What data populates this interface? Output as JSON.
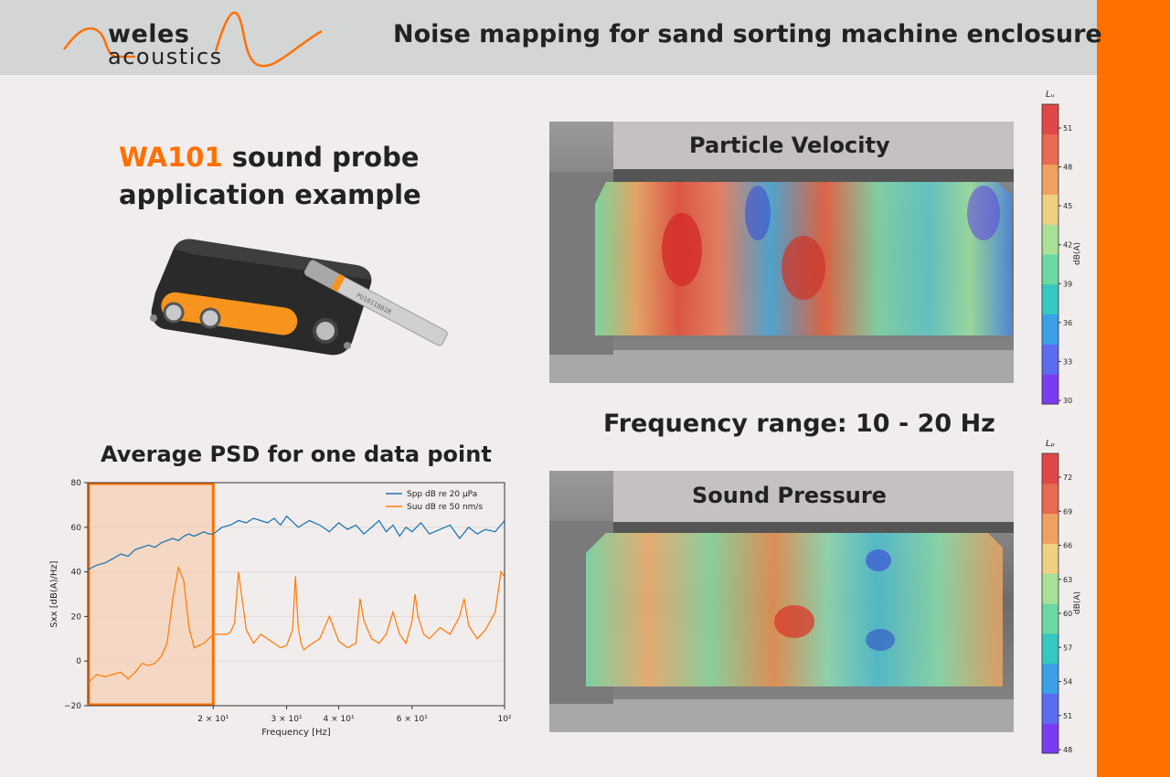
{
  "header": {
    "title": "Noise mapping for sand sorting machine enclosure",
    "logo_line1": "weles",
    "logo_line2": "acoustics"
  },
  "intro": {
    "product": "WA101",
    "line1_rest": " sound probe",
    "line2": "application example",
    "probe_serial": "PU1011801R"
  },
  "psd_title": "Average PSD for one data point",
  "frequency_range": "Frequency range: 10 - 20 Hz",
  "maps": [
    {
      "title": "Particle Velocity",
      "symbol": "Lᵤ",
      "unit": "dB(A)",
      "ticks": [
        "51",
        "48",
        "45",
        "42",
        "39",
        "36",
        "33",
        "30"
      ]
    },
    {
      "title": "Sound Pressure",
      "symbol": "Lₚ",
      "unit": "dB(A)",
      "ticks": [
        "72",
        "69",
        "66",
        "63",
        "60",
        "57",
        "54",
        "51",
        "48"
      ]
    }
  ],
  "colors": {
    "brand_orange": "#ff7000",
    "header_bg": "#d4d6d6",
    "spp": "#1f77b4",
    "suu": "#ff7f0e"
  },
  "chart_data": {
    "type": "line",
    "xscale": "log",
    "xlim": [
      10,
      100
    ],
    "ylim": [
      -20,
      80
    ],
    "xlabel": "Frequency [Hz]",
    "ylabel": "Sxx [dB(A)/Hz]",
    "xticks": [
      {
        "value": 20,
        "label": "2 × 10¹"
      },
      {
        "value": 30,
        "label": "3 × 10¹"
      },
      {
        "value": 40,
        "label": "4 × 10¹"
      },
      {
        "value": 60,
        "label": "6 × 10¹"
      },
      {
        "value": 100,
        "label": "10²"
      }
    ],
    "yticks": [
      "80",
      "60",
      "40",
      "20",
      "0",
      "−20"
    ],
    "highlight_range": [
      10,
      20
    ],
    "legend_position": "top-right",
    "series": [
      {
        "name": "Spp dB re 20 μPa",
        "color": "#1f77b4",
        "x": [
          10,
          10.5,
          11,
          11.5,
          12,
          12.5,
          13,
          13.5,
          14,
          14.5,
          15,
          15.5,
          16,
          16.5,
          17,
          17.5,
          18,
          18.5,
          19,
          19.5,
          20,
          21,
          22,
          23,
          24,
          25,
          26,
          27,
          28,
          29,
          30,
          32,
          34,
          36,
          38,
          40,
          42,
          44,
          46,
          48,
          50,
          52,
          54,
          56,
          58,
          60,
          63,
          66,
          70,
          74,
          78,
          82,
          86,
          90,
          95,
          100
        ],
        "y": [
          41,
          43,
          44,
          46,
          48,
          47,
          50,
          51,
          52,
          51,
          53,
          54,
          55,
          54,
          56,
          57,
          56,
          57,
          58,
          57,
          57,
          60,
          61,
          63,
          62,
          64,
          63,
          62,
          64,
          61,
          65,
          60,
          63,
          61,
          58,
          62,
          59,
          61,
          57,
          60,
          63,
          58,
          61,
          56,
          60,
          58,
          62,
          57,
          59,
          61,
          55,
          60,
          57,
          59,
          58,
          63
        ]
      },
      {
        "name": "Suu dB re 50 nm/s",
        "color": "#ff7f0e",
        "x": [
          10,
          10.5,
          11,
          11.5,
          12,
          12.5,
          13,
          13.5,
          14,
          14.5,
          15,
          15.5,
          16,
          16.5,
          17,
          17.5,
          18,
          18.5,
          19,
          19.5,
          20,
          21,
          21.5,
          22,
          22.5,
          23,
          24,
          25,
          26,
          27,
          28,
          29,
          30,
          31,
          31.5,
          32,
          32.5,
          33,
          34,
          36,
          38,
          40,
          42,
          44,
          45,
          46,
          48,
          50,
          52,
          54,
          56,
          58,
          60,
          61,
          62,
          64,
          66,
          70,
          74,
          78,
          80,
          82,
          86,
          90,
          95,
          98,
          100
        ],
        "y": [
          -10,
          -6,
          -7,
          -6,
          -5,
          -8,
          -5,
          -1,
          -2,
          -1,
          2,
          8,
          28,
          42,
          36,
          15,
          6,
          7,
          8,
          10,
          12,
          12,
          12,
          13,
          17,
          40,
          14,
          8,
          12,
          10,
          8,
          6,
          7,
          14,
          38,
          15,
          8,
          5,
          7,
          10,
          20,
          9,
          6,
          8,
          28,
          18,
          10,
          8,
          12,
          22,
          12,
          8,
          18,
          30,
          20,
          12,
          10,
          15,
          12,
          20,
          28,
          16,
          10,
          14,
          22,
          40,
          38
        ]
      }
    ]
  }
}
